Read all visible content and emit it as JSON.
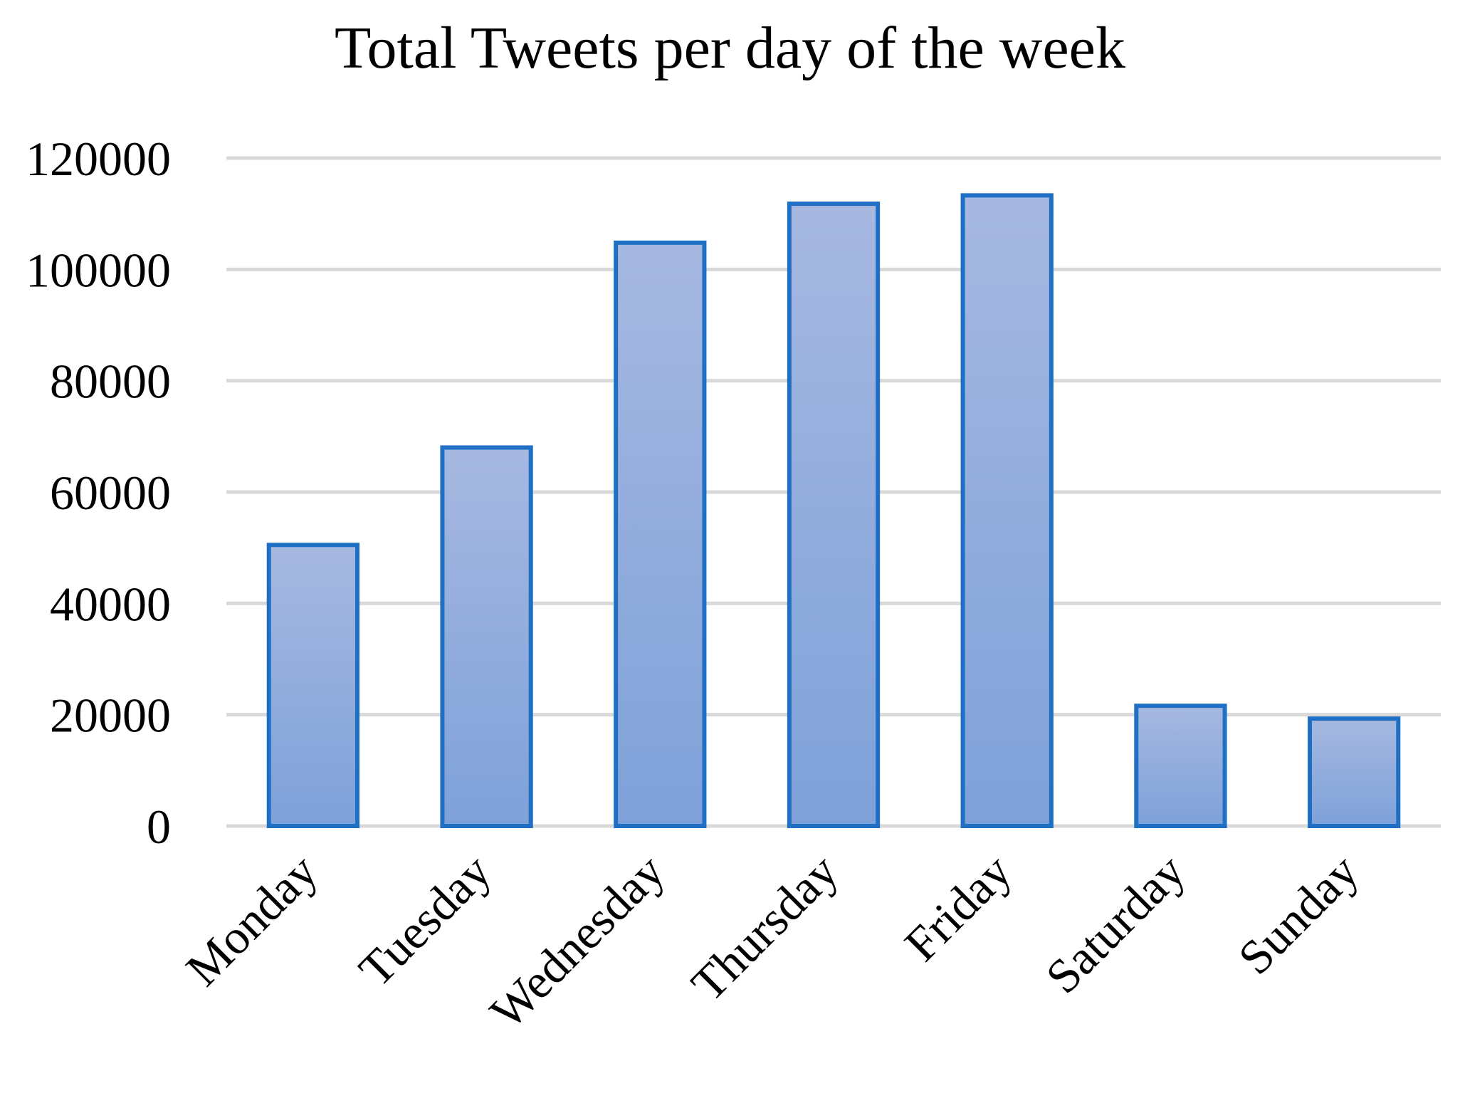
{
  "chart_data": {
    "type": "bar",
    "title": "Total Tweets per day of the week",
    "xlabel": "",
    "ylabel": "",
    "categories": [
      "Monday",
      "Tuesday",
      "Wednesday",
      "Thursday",
      "Friday",
      "Saturday",
      "Sunday"
    ],
    "values": [
      50500,
      68000,
      104800,
      111800,
      113300,
      21600,
      19300
    ],
    "ylim": [
      0,
      120000
    ],
    "yticks": [
      "0",
      "20000",
      "40000",
      "60000",
      "80000",
      "100000",
      "120000"
    ],
    "grid": true,
    "legend": "none",
    "colors": {
      "bar_fill_top": "#a6b8e0",
      "bar_fill_bottom": "#7ea1d9",
      "bar_stroke": "#1f6fc4",
      "grid": "#d9d9d9"
    }
  }
}
